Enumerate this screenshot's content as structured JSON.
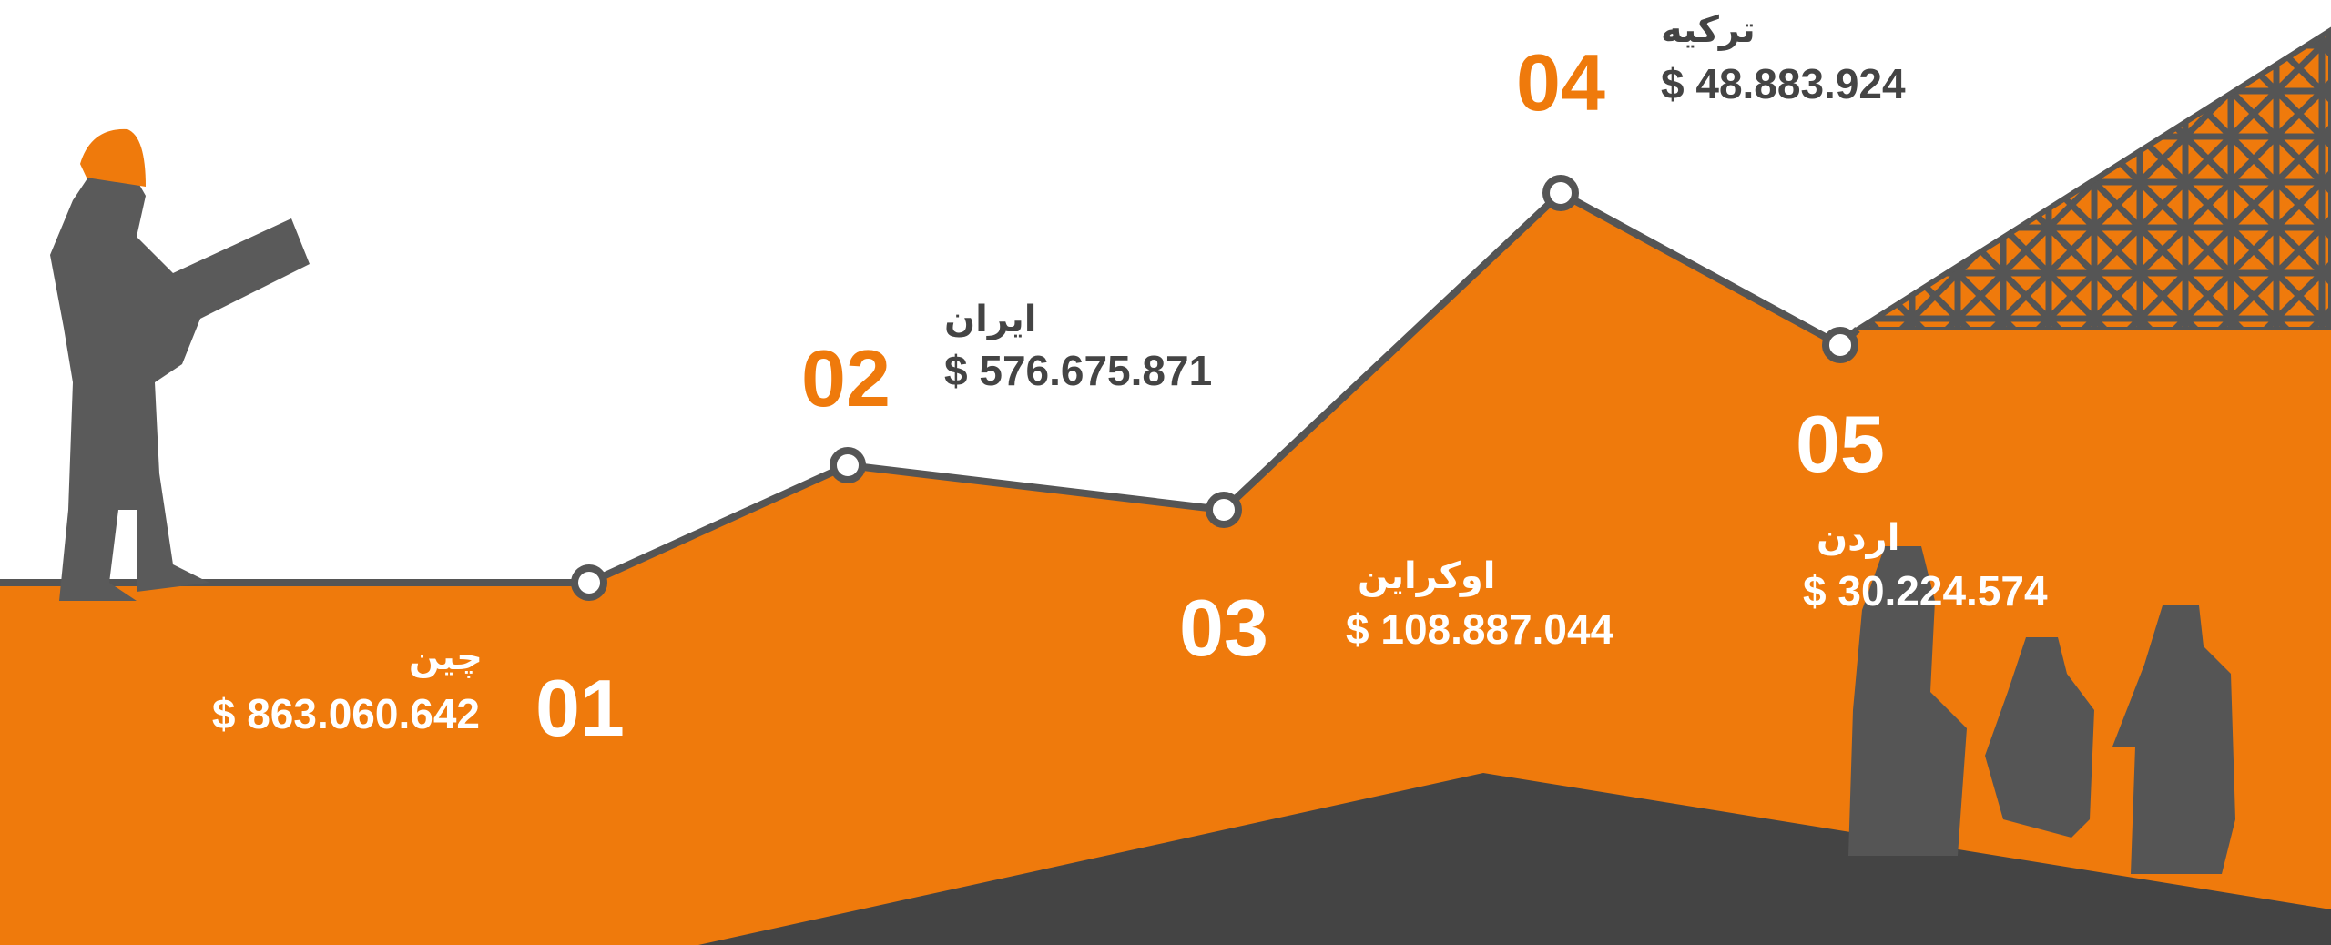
{
  "items": [
    {
      "number": "01",
      "country": "چین",
      "amount": "$ 863.060.642"
    },
    {
      "number": "02",
      "country": "ایران",
      "amount": "$ 576.675.871"
    },
    {
      "number": "03",
      "country": "اوکراین",
      "amount": "$ 108.887.044"
    },
    {
      "number": "04",
      "country": "ترکیه",
      "amount": "$ 48.883.924"
    },
    {
      "number": "05",
      "country": "اردن",
      "amount": "$ 30.224.574"
    }
  ]
}
